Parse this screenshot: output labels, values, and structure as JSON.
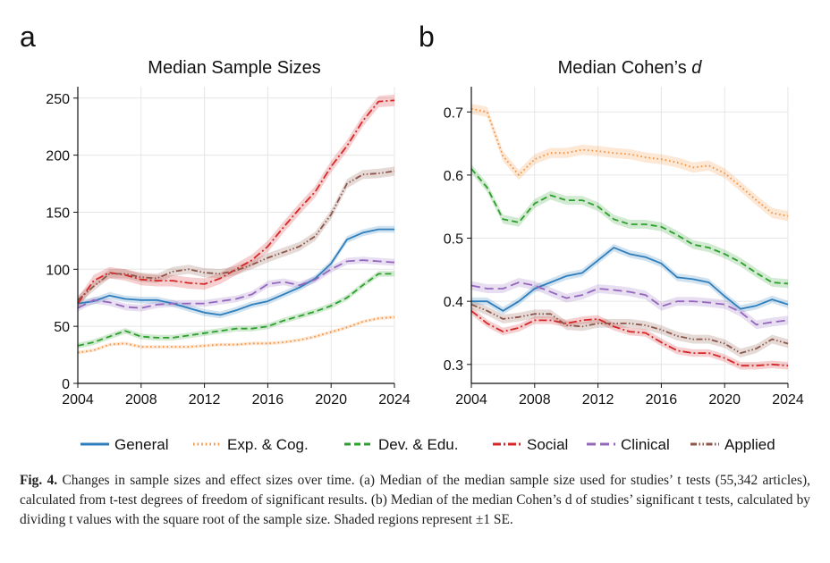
{
  "colors": {
    "General": "#2f7ebc",
    "Exp. & Cog.": "#f5923e",
    "Dev. & Edu.": "#2ca02c",
    "Social": "#d62728",
    "Clinical": "#9467bd",
    "Applied": "#8c564b"
  },
  "legend": [
    {
      "name": "General",
      "dash": "solid"
    },
    {
      "name": "Exp. & Cog.",
      "dash": "dotted"
    },
    {
      "name": "Dev. & Edu.",
      "dash": "dashed"
    },
    {
      "name": "Social",
      "dash": "dashdot"
    },
    {
      "name": "Clinical",
      "dash": "longdash"
    },
    {
      "name": "Applied",
      "dash": "dashdotdot"
    }
  ],
  "caption": {
    "label": "Fig. 4.",
    "text": "Changes in sample sizes and effect sizes over time. (a) Median of the median sample size used for studies’ t tests (55,342 articles), calculated from t-test degrees of freedom of significant results. (b) Median of the median Cohen’s d of studies’ significant t tests, calculated by dividing t values with the square root of the sample size. Shaded regions represent ±1 SE."
  },
  "chart_data": [
    {
      "type": "line",
      "panel_label": "a",
      "title": "Median Sample Sizes",
      "xlabel": "",
      "ylabel": "",
      "xlim": [
        2004,
        2024
      ],
      "ylim": [
        0,
        260
      ],
      "xticks": [
        2004,
        2008,
        2012,
        2016,
        2020,
        2024
      ],
      "yticks": [
        0,
        50,
        100,
        150,
        200,
        250
      ],
      "grid": true,
      "x": [
        2004,
        2005,
        2006,
        2007,
        2008,
        2009,
        2010,
        2011,
        2012,
        2013,
        2014,
        2015,
        2016,
        2017,
        2018,
        2019,
        2020,
        2021,
        2022,
        2023,
        2024
      ],
      "series": [
        {
          "name": "General",
          "se": 3,
          "values": [
            70,
            72,
            77,
            74,
            73,
            73,
            70,
            66,
            62,
            60,
            64,
            69,
            72,
            78,
            84,
            92,
            105,
            126,
            132,
            135,
            135
          ]
        },
        {
          "name": "Exp. & Cog.",
          "se": 1.5,
          "values": [
            27,
            29,
            34,
            35,
            32,
            32,
            32,
            32,
            33,
            34,
            34,
            35,
            35,
            36,
            38,
            41,
            45,
            49,
            54,
            57,
            58
          ]
        },
        {
          "name": "Dev. & Edu.",
          "se": 2.5,
          "values": [
            33,
            36,
            41,
            46,
            41,
            40,
            40,
            42,
            44,
            46,
            48,
            48,
            50,
            55,
            59,
            63,
            68,
            75,
            86,
            96,
            96
          ]
        },
        {
          "name": "Social",
          "se": 5,
          "values": [
            70,
            90,
            97,
            95,
            91,
            90,
            90,
            88,
            87,
            92,
            100,
            108,
            120,
            137,
            153,
            168,
            190,
            208,
            230,
            247,
            248
          ]
        },
        {
          "name": "Clinical",
          "se": 3,
          "values": [
            66,
            73,
            71,
            67,
            66,
            69,
            70,
            70,
            70,
            72,
            74,
            78,
            87,
            89,
            86,
            91,
            100,
            107,
            108,
            107,
            106
          ]
        },
        {
          "name": "Applied",
          "se": 4,
          "values": [
            73,
            85,
            96,
            96,
            93,
            92,
            98,
            100,
            97,
            96,
            99,
            104,
            110,
            115,
            120,
            129,
            148,
            175,
            183,
            184,
            186
          ]
        }
      ]
    },
    {
      "type": "line",
      "panel_label": "b",
      "title": "Median Cohen’s ",
      "title_italic": "d",
      "xlabel": "",
      "ylabel": "",
      "xlim": [
        2004,
        2024
      ],
      "ylim": [
        0.27,
        0.74
      ],
      "xticks": [
        2004,
        2008,
        2012,
        2016,
        2020,
        2024
      ],
      "yticks": [
        0.3,
        0.4,
        0.5,
        0.6,
        0.7
      ],
      "grid": true,
      "x": [
        2004,
        2005,
        2006,
        2007,
        2008,
        2009,
        2010,
        2011,
        2012,
        2013,
        2014,
        2015,
        2016,
        2017,
        2018,
        2019,
        2020,
        2021,
        2022,
        2023,
        2024
      ],
      "series": [
        {
          "name": "General",
          "se": 0.006,
          "values": [
            0.4,
            0.4,
            0.385,
            0.4,
            0.42,
            0.43,
            0.44,
            0.445,
            0.465,
            0.485,
            0.475,
            0.47,
            0.46,
            0.438,
            0.435,
            0.43,
            0.408,
            0.388,
            0.393,
            0.403,
            0.395
          ]
        },
        {
          "name": "Exp. & Cog.",
          "se": 0.008,
          "values": [
            0.705,
            0.7,
            0.63,
            0.6,
            0.625,
            0.635,
            0.635,
            0.64,
            0.638,
            0.635,
            0.633,
            0.628,
            0.625,
            0.62,
            0.612,
            0.615,
            0.603,
            0.582,
            0.56,
            0.54,
            0.535
          ]
        },
        {
          "name": "Dev. & Edu.",
          "se": 0.007,
          "values": [
            0.61,
            0.58,
            0.53,
            0.525,
            0.555,
            0.568,
            0.56,
            0.56,
            0.55,
            0.53,
            0.522,
            0.522,
            0.518,
            0.505,
            0.49,
            0.485,
            0.475,
            0.462,
            0.445,
            0.43,
            0.428
          ]
        },
        {
          "name": "Social",
          "se": 0.006,
          "values": [
            0.385,
            0.365,
            0.352,
            0.358,
            0.37,
            0.37,
            0.365,
            0.37,
            0.372,
            0.36,
            0.352,
            0.35,
            0.335,
            0.322,
            0.318,
            0.318,
            0.31,
            0.298,
            0.298,
            0.3,
            0.298
          ]
        },
        {
          "name": "Clinical",
          "se": 0.007,
          "values": [
            0.425,
            0.42,
            0.42,
            0.43,
            0.425,
            0.415,
            0.405,
            0.41,
            0.42,
            0.418,
            0.415,
            0.41,
            0.392,
            0.4,
            0.4,
            0.398,
            0.395,
            0.383,
            0.363,
            0.367,
            0.37
          ]
        },
        {
          "name": "Applied",
          "se": 0.007,
          "values": [
            0.395,
            0.385,
            0.372,
            0.375,
            0.38,
            0.38,
            0.362,
            0.36,
            0.365,
            0.365,
            0.365,
            0.362,
            0.355,
            0.345,
            0.34,
            0.34,
            0.333,
            0.318,
            0.325,
            0.34,
            0.333
          ]
        }
      ]
    }
  ]
}
